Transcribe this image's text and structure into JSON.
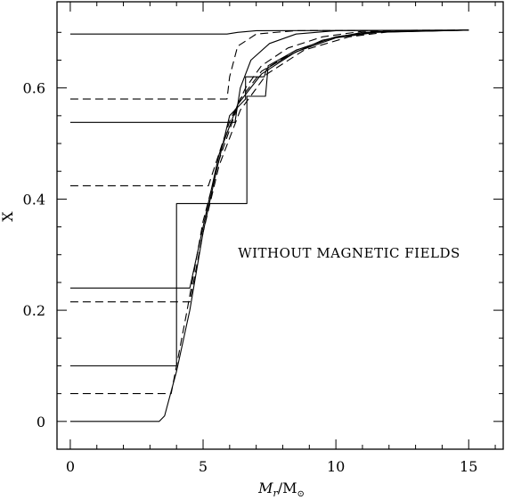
{
  "chart_data": {
    "type": "line",
    "title": "",
    "xlabel_main": "M",
    "xlabel_sub": "r",
    "xlabel_rest": "/M",
    "xlabel_sun": "⊙",
    "ylabel": "X",
    "annotation": "WITHOUT MAGNETIC FIELDS",
    "xlim": [
      -0.5,
      16.3
    ],
    "ylim": [
      -0.05,
      0.755
    ],
    "xticks": [
      0,
      5,
      10,
      15
    ],
    "xtick_labels": [
      "0",
      "5",
      "10",
      "15"
    ],
    "yticks": [
      0,
      0.2,
      0.4,
      0.6
    ],
    "ytick_labels": [
      "0",
      "0.2",
      "0.4",
      "0.6"
    ],
    "grid": false,
    "series": [
      {
        "style": "solid",
        "points": [
          [
            0,
            0.697
          ],
          [
            5.9,
            0.697
          ],
          [
            6.3,
            0.7
          ],
          [
            7.0,
            0.703
          ],
          [
            15,
            0.704
          ]
        ]
      },
      {
        "style": "dashed",
        "points": [
          [
            0,
            0.58
          ],
          [
            5.9,
            0.58
          ],
          [
            6.0,
            0.62
          ],
          [
            6.3,
            0.675
          ],
          [
            7.0,
            0.697
          ],
          [
            8.5,
            0.703
          ],
          [
            15,
            0.704
          ]
        ]
      },
      {
        "style": "solid",
        "points": [
          [
            0,
            0.538
          ],
          [
            6.2,
            0.538
          ],
          [
            6.4,
            0.6
          ],
          [
            6.8,
            0.65
          ],
          [
            7.5,
            0.68
          ],
          [
            8.5,
            0.697
          ],
          [
            10,
            0.703
          ],
          [
            15,
            0.704
          ]
        ]
      },
      {
        "style": "dashed",
        "points": [
          [
            0,
            0.424
          ],
          [
            5.2,
            0.424
          ],
          [
            6.0,
            0.54
          ],
          [
            6.6,
            0.6
          ],
          [
            7.2,
            0.64
          ],
          [
            8.2,
            0.672
          ],
          [
            9.5,
            0.692
          ],
          [
            11,
            0.702
          ],
          [
            15,
            0.704
          ]
        ]
      },
      {
        "style": "solid",
        "points": [
          [
            0,
            0.0
          ],
          [
            3.35,
            0.0
          ],
          [
            3.55,
            0.01
          ],
          [
            4.0,
            0.09
          ],
          [
            4.5,
            0.2
          ],
          [
            5.0,
            0.34
          ],
          [
            5.5,
            0.45
          ],
          [
            6.0,
            0.55
          ],
          [
            6.6,
            0.58
          ],
          [
            6.6,
            0.62
          ],
          [
            7.3,
            0.62
          ],
          [
            7.4,
            0.635
          ],
          [
            8.3,
            0.66
          ],
          [
            9.5,
            0.686
          ],
          [
            11,
            0.7
          ],
          [
            15,
            0.704
          ]
        ]
      },
      {
        "style": "solid",
        "points": [
          [
            0,
            0.1
          ],
          [
            4.0,
            0.1
          ],
          [
            4.0,
            0.392
          ],
          [
            6.65,
            0.392
          ],
          [
            6.65,
            0.585
          ],
          [
            7.35,
            0.585
          ],
          [
            7.45,
            0.64
          ],
          [
            8.5,
            0.668
          ],
          [
            10,
            0.692
          ],
          [
            11.5,
            0.701
          ],
          [
            15,
            0.704
          ]
        ]
      },
      {
        "style": "dashed",
        "points": [
          [
            0,
            0.05
          ],
          [
            3.8,
            0.05
          ],
          [
            4.4,
            0.2
          ],
          [
            5.0,
            0.36
          ],
          [
            5.6,
            0.47
          ],
          [
            6.4,
            0.58
          ],
          [
            7.2,
            0.63
          ],
          [
            8.5,
            0.668
          ],
          [
            10,
            0.692
          ],
          [
            11.5,
            0.701
          ],
          [
            15,
            0.704
          ]
        ]
      },
      {
        "style": "solid",
        "points": [
          [
            0,
            0.24
          ],
          [
            4.5,
            0.24
          ],
          [
            5.0,
            0.35
          ],
          [
            5.6,
            0.48
          ],
          [
            6.3,
            0.57
          ],
          [
            7.2,
            0.625
          ],
          [
            8.5,
            0.665
          ],
          [
            10,
            0.69
          ],
          [
            11.5,
            0.7
          ],
          [
            15,
            0.704
          ]
        ]
      },
      {
        "style": "dashed",
        "points": [
          [
            0,
            0.215
          ],
          [
            4.5,
            0.215
          ],
          [
            5.0,
            0.34
          ],
          [
            5.6,
            0.46
          ],
          [
            6.4,
            0.56
          ],
          [
            7.4,
            0.625
          ],
          [
            8.8,
            0.668
          ],
          [
            10.5,
            0.692
          ],
          [
            12,
            0.701
          ],
          [
            15,
            0.704
          ]
        ]
      }
    ]
  }
}
